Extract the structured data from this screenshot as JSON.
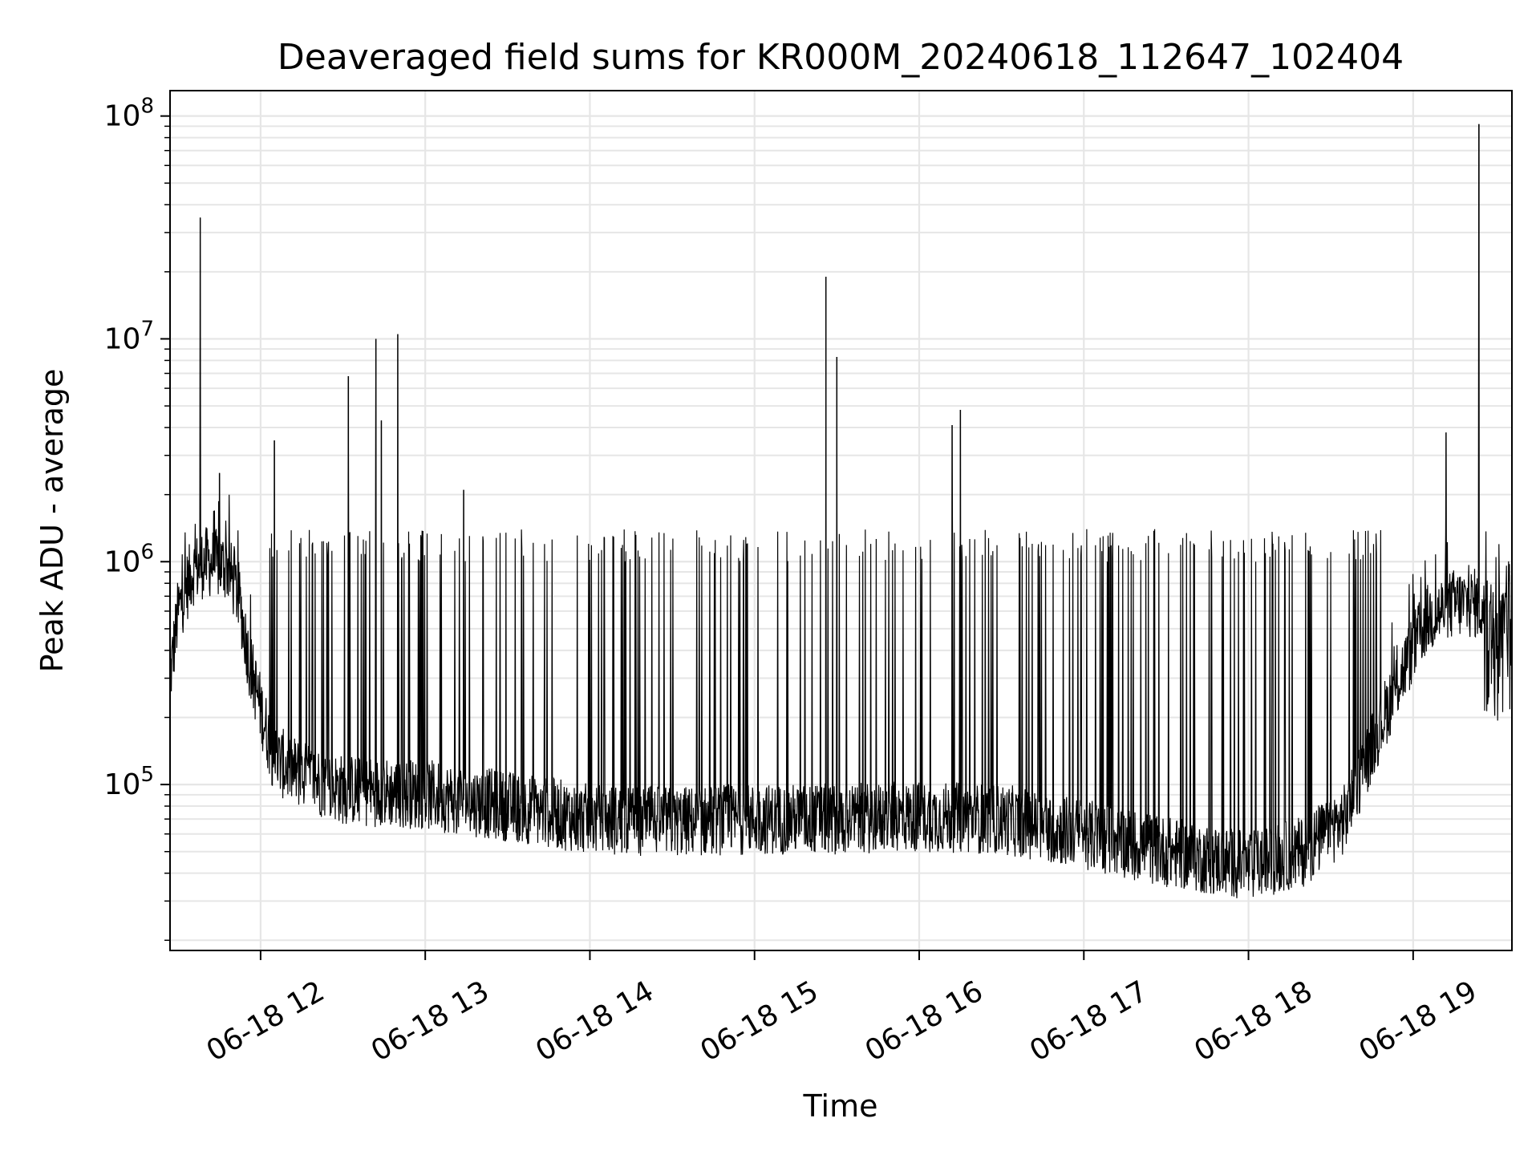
{
  "chart_data": {
    "type": "line",
    "title": "Deaveraged field sums for KR000M_20240618_112647_102404",
    "xlabel": "Time",
    "ylabel": "Peak ADU - average",
    "yscale": "log",
    "ylim": [
      18000,
      130000000
    ],
    "xlim": [
      "2024-06-18T11:27",
      "2024-06-18T19:36"
    ],
    "grid": "on",
    "line_color": "#000000",
    "x_ticks": [
      {
        "value": "2024-06-18T12:00",
        "label": "06-18 12"
      },
      {
        "value": "2024-06-18T13:00",
        "label": "06-18 13"
      },
      {
        "value": "2024-06-18T14:00",
        "label": "06-18 14"
      },
      {
        "value": "2024-06-18T15:00",
        "label": "06-18 15"
      },
      {
        "value": "2024-06-18T16:00",
        "label": "06-18 16"
      },
      {
        "value": "2024-06-18T17:00",
        "label": "06-18 17"
      },
      {
        "value": "2024-06-18T18:00",
        "label": "06-18 18"
      },
      {
        "value": "2024-06-18T19:00",
        "label": "06-18 19"
      }
    ],
    "y_ticks": [
      {
        "value": 100000,
        "base": "10",
        "exp": "5"
      },
      {
        "value": 1000000,
        "base": "10",
        "exp": "6"
      },
      {
        "value": 10000000,
        "base": "10",
        "exp": "7"
      },
      {
        "value": 100000000,
        "base": "10",
        "exp": "8"
      }
    ],
    "series": [
      {
        "baseline": [
          {
            "x": "2024-06-18T11:27",
            "y": 300000
          },
          {
            "x": "2024-06-18T11:30",
            "y": 600000
          },
          {
            "x": "2024-06-18T11:35",
            "y": 900000
          },
          {
            "x": "2024-06-18T11:40",
            "y": 1000000
          },
          {
            "x": "2024-06-18T11:48",
            "y": 950000
          },
          {
            "x": "2024-06-18T11:52",
            "y": 700000
          },
          {
            "x": "2024-06-18T11:56",
            "y": 350000
          },
          {
            "x": "2024-06-18T12:00",
            "y": 220000
          },
          {
            "x": "2024-06-18T12:05",
            "y": 130000
          },
          {
            "x": "2024-06-18T12:15",
            "y": 110000
          },
          {
            "x": "2024-06-18T12:30",
            "y": 95000
          },
          {
            "x": "2024-06-18T13:00",
            "y": 90000
          },
          {
            "x": "2024-06-18T13:30",
            "y": 80000
          },
          {
            "x": "2024-06-18T14:00",
            "y": 70000
          },
          {
            "x": "2024-06-18T14:30",
            "y": 68000
          },
          {
            "x": "2024-06-18T15:00",
            "y": 70000
          },
          {
            "x": "2024-06-18T15:30",
            "y": 70000
          },
          {
            "x": "2024-06-18T16:00",
            "y": 72000
          },
          {
            "x": "2024-06-18T16:30",
            "y": 70000
          },
          {
            "x": "2024-06-18T17:00",
            "y": 60000
          },
          {
            "x": "2024-06-18T17:30",
            "y": 50000
          },
          {
            "x": "2024-06-18T18:00",
            "y": 43000
          },
          {
            "x": "2024-06-18T18:20",
            "y": 50000
          },
          {
            "x": "2024-06-18T18:35",
            "y": 70000
          },
          {
            "x": "2024-06-18T18:45",
            "y": 150000
          },
          {
            "x": "2024-06-18T18:55",
            "y": 300000
          },
          {
            "x": "2024-06-18T19:05",
            "y": 550000
          },
          {
            "x": "2024-06-18T19:15",
            "y": 650000
          },
          {
            "x": "2024-06-18T19:24",
            "y": 650000
          },
          {
            "x": "2024-06-18T19:28",
            "y": 500000
          },
          {
            "x": "2024-06-18T19:36",
            "y": 550000
          }
        ],
        "spikes": [
          {
            "x": "2024-06-18T11:38",
            "y": 35000000
          },
          {
            "x": "2024-06-18T11:45",
            "y": 2500000
          },
          {
            "x": "2024-06-18T12:05",
            "y": 3500000
          },
          {
            "x": "2024-06-18T12:32",
            "y": 6800000
          },
          {
            "x": "2024-06-18T12:42",
            "y": 10000000
          },
          {
            "x": "2024-06-18T12:44",
            "y": 4300000
          },
          {
            "x": "2024-06-18T12:50",
            "y": 10500000
          },
          {
            "x": "2024-06-18T13:14",
            "y": 2100000
          },
          {
            "x": "2024-06-18T15:26",
            "y": 19000000
          },
          {
            "x": "2024-06-18T15:30",
            "y": 8300000
          },
          {
            "x": "2024-06-18T16:12",
            "y": 4100000
          },
          {
            "x": "2024-06-18T16:15",
            "y": 4800000
          },
          {
            "x": "2024-06-18T19:12",
            "y": 3800000
          },
          {
            "x": "2024-06-18T19:24",
            "y": 92000000
          }
        ]
      }
    ]
  }
}
